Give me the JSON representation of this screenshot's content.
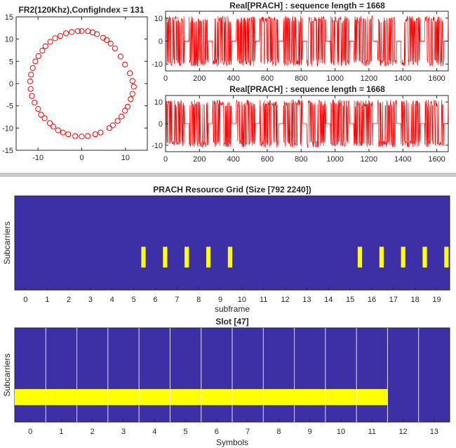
{
  "chart_data": [
    {
      "type": "scatter",
      "title": "FR2(120Khz),ConfigIndex = 131",
      "xlim": [
        -15,
        15
      ],
      "ylim": [
        -15,
        15
      ],
      "xticks": [
        -10,
        0,
        10
      ],
      "yticks": [
        15,
        10,
        5,
        0,
        -5,
        -10,
        -15
      ],
      "marker": "open circle",
      "color": "#ff0000",
      "points": [
        [
          0.0,
          11.8
        ],
        [
          1.4,
          11.8
        ],
        [
          2.5,
          11.5
        ],
        [
          3.5,
          11.1
        ],
        [
          4.9,
          10.3
        ],
        [
          5.7,
          9.8
        ],
        [
          6.6,
          9.0
        ],
        [
          7.6,
          7.9
        ],
        [
          8.9,
          6.1
        ],
        [
          9.9,
          4.3
        ],
        [
          11.0,
          2.3
        ],
        [
          11.6,
          0.6
        ],
        [
          11.9,
          -0.7
        ],
        [
          11.6,
          -2.3
        ],
        [
          11.2,
          -3.5
        ],
        [
          10.5,
          -5.2
        ],
        [
          9.9,
          -6.1
        ],
        [
          9.1,
          -7.4
        ],
        [
          8.2,
          -8.4
        ],
        [
          7.1,
          -9.4
        ],
        [
          6.3,
          -10.0
        ],
        [
          4.3,
          -11.0
        ],
        [
          3.1,
          -11.4
        ],
        [
          1.4,
          -11.8
        ],
        [
          0.0,
          -11.9
        ],
        [
          -1.5,
          -11.8
        ],
        [
          -3.1,
          -11.4
        ],
        [
          -4.3,
          -11.0
        ],
        [
          -5.4,
          -10.5
        ],
        [
          -6.5,
          -9.7
        ],
        [
          -7.3,
          -8.9
        ],
        [
          -8.5,
          -7.8
        ],
        [
          -9.3,
          -7.0
        ],
        [
          -10.0,
          -5.7
        ],
        [
          -10.8,
          -4.3
        ],
        [
          -11.4,
          -2.8
        ],
        [
          -11.7,
          -1.2
        ],
        [
          -11.8,
          0.5
        ],
        [
          -11.6,
          2.0
        ],
        [
          -11.2,
          3.5
        ],
        [
          -10.6,
          5.0
        ],
        [
          -9.9,
          6.2
        ],
        [
          -9.0,
          7.4
        ],
        [
          -8.3,
          8.4
        ],
        [
          -7.2,
          9.4
        ],
        [
          -6.1,
          10.2
        ],
        [
          -4.9,
          10.7
        ],
        [
          -3.6,
          11.3
        ],
        [
          -2.3,
          11.6
        ],
        [
          -0.9,
          11.8
        ]
      ]
    },
    {
      "type": "line",
      "title": "Real[PRACH] : sequence length = 1668",
      "xlim": [
        0,
        1668
      ],
      "ylim": [
        -13,
        13
      ],
      "xticks": [
        0,
        200,
        400,
        600,
        800,
        1000,
        1200,
        1400,
        1600
      ],
      "yticks": [
        10,
        0,
        -10
      ],
      "color": "#ff0000",
      "burst_period": 139,
      "burst_length": 112,
      "amplitude": 11
    },
    {
      "type": "line",
      "title": "Real[PRACH] : sequence length = 1668",
      "xlim": [
        0,
        1668
      ],
      "ylim": [
        -13,
        13
      ],
      "xticks": [
        0,
        200,
        400,
        600,
        800,
        1000,
        1200,
        1400,
        1600
      ],
      "yticks": [
        10,
        0,
        -10
      ],
      "color": "#ff0000",
      "burst_period": 139,
      "burst_length": 112,
      "amplitude": 11
    },
    {
      "type": "heatmap",
      "title": "PRACH Resource Grid (Size [792 2240])",
      "xlabel": "subframe",
      "ylabel": "Subcarriers",
      "xlim": [
        -0.5,
        19.6
      ],
      "xticks": [
        0,
        1,
        2,
        3,
        4,
        5,
        6,
        7,
        8,
        9,
        10,
        11,
        12,
        13,
        14,
        15,
        16,
        17,
        18,
        19
      ],
      "background_color": "#3d2fa6",
      "active_color": "#ffff00",
      "subcarrier_range": [
        0.54,
        0.76
      ],
      "active_slots": [
        [
          5.35,
          5.55
        ],
        [
          6.35,
          6.55
        ],
        [
          7.35,
          7.55
        ],
        [
          8.35,
          8.55
        ],
        [
          9.35,
          9.55
        ],
        [
          15.35,
          15.55
        ],
        [
          16.35,
          16.55
        ],
        [
          17.35,
          17.55
        ],
        [
          18.35,
          18.55
        ],
        [
          19.35,
          19.55
        ]
      ]
    },
    {
      "type": "heatmap",
      "title": "Slot [47]",
      "xlabel": "Symbols",
      "ylabel": "Subcarriers",
      "xlim": [
        -0.5,
        13.5
      ],
      "xticks": [
        0,
        1,
        2,
        3,
        4,
        5,
        6,
        7,
        8,
        9,
        10,
        11,
        12,
        13
      ],
      "background_color": "#3d2fa6",
      "active_color": "#ffff00",
      "symbol_boundaries": [
        0.5,
        1.5,
        2.5,
        3.5,
        4.5,
        5.5,
        6.5,
        7.5,
        8.5,
        9.5,
        10.5,
        11.5,
        12.5
      ],
      "active_symbols": [
        -0.5,
        11.5
      ],
      "subcarrier_range": [
        0.65,
        0.82
      ]
    }
  ]
}
